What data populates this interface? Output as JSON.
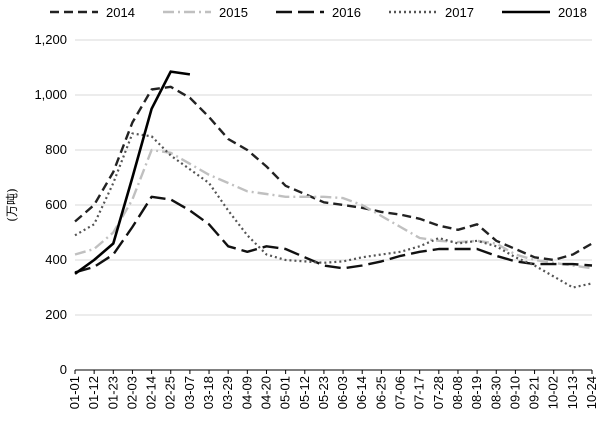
{
  "chart_data": {
    "type": "line",
    "title": "",
    "xlabel": "",
    "ylabel": "(万吨)",
    "ylim": [
      0,
      1200
    ],
    "yticks": [
      0,
      200,
      400,
      600,
      800,
      1000,
      1200
    ],
    "ytick_labels": [
      "0",
      "200",
      "400",
      "600",
      "800",
      "1,000",
      "1,200"
    ],
    "grid": "horizontal",
    "legend_position": "top",
    "x": [
      "01-01",
      "01-12",
      "01-23",
      "02-03",
      "02-14",
      "02-25",
      "03-07",
      "03-18",
      "03-29",
      "04-09",
      "04-20",
      "05-01",
      "05-12",
      "05-23",
      "06-03",
      "06-14",
      "06-25",
      "07-06",
      "07-17",
      "07-28",
      "08-08",
      "08-19",
      "08-30",
      "09-10",
      "09-21",
      "10-02",
      "10-13",
      "10-24"
    ],
    "series": [
      {
        "name": "2014",
        "style": "dashed",
        "color": "#222222",
        "values": [
          540,
          600,
          720,
          900,
          1020,
          1030,
          990,
          920,
          840,
          800,
          740,
          670,
          640,
          610,
          600,
          590,
          575,
          565,
          550,
          525,
          510,
          530,
          470,
          440,
          410,
          400,
          420,
          460
        ]
      },
      {
        "name": "2015",
        "style": "dashdot",
        "color": "#c0c0c0",
        "values": [
          420,
          440,
          500,
          620,
          800,
          790,
          750,
          710,
          680,
          650,
          640,
          630,
          630,
          630,
          625,
          600,
          560,
          520,
          480,
          470,
          465,
          470,
          460,
          420,
          400,
          390,
          380,
          370
        ]
      },
      {
        "name": "2016",
        "style": "longdash",
        "color": "#111111",
        "values": [
          355,
          375,
          420,
          520,
          630,
          620,
          580,
          530,
          450,
          430,
          450,
          440,
          410,
          380,
          370,
          380,
          395,
          415,
          430,
          440,
          440,
          440,
          415,
          395,
          385,
          385,
          385,
          380
        ]
      },
      {
        "name": "2017",
        "style": "dotted",
        "color": "#555555",
        "values": [
          490,
          530,
          680,
          860,
          850,
          780,
          730,
          680,
          580,
          490,
          420,
          400,
          395,
          390,
          395,
          410,
          420,
          430,
          450,
          480,
          460,
          470,
          450,
          410,
          380,
          340,
          300,
          315
        ]
      },
      {
        "name": "2018",
        "style": "solid",
        "color": "#000000",
        "values": [
          350,
          400,
          460,
          700,
          950,
          1085,
          1075,
          null,
          null,
          null,
          null,
          null,
          null,
          null,
          null,
          null,
          null,
          null,
          null,
          null,
          null,
          null,
          null,
          null,
          null,
          null,
          null,
          null
        ]
      }
    ]
  }
}
